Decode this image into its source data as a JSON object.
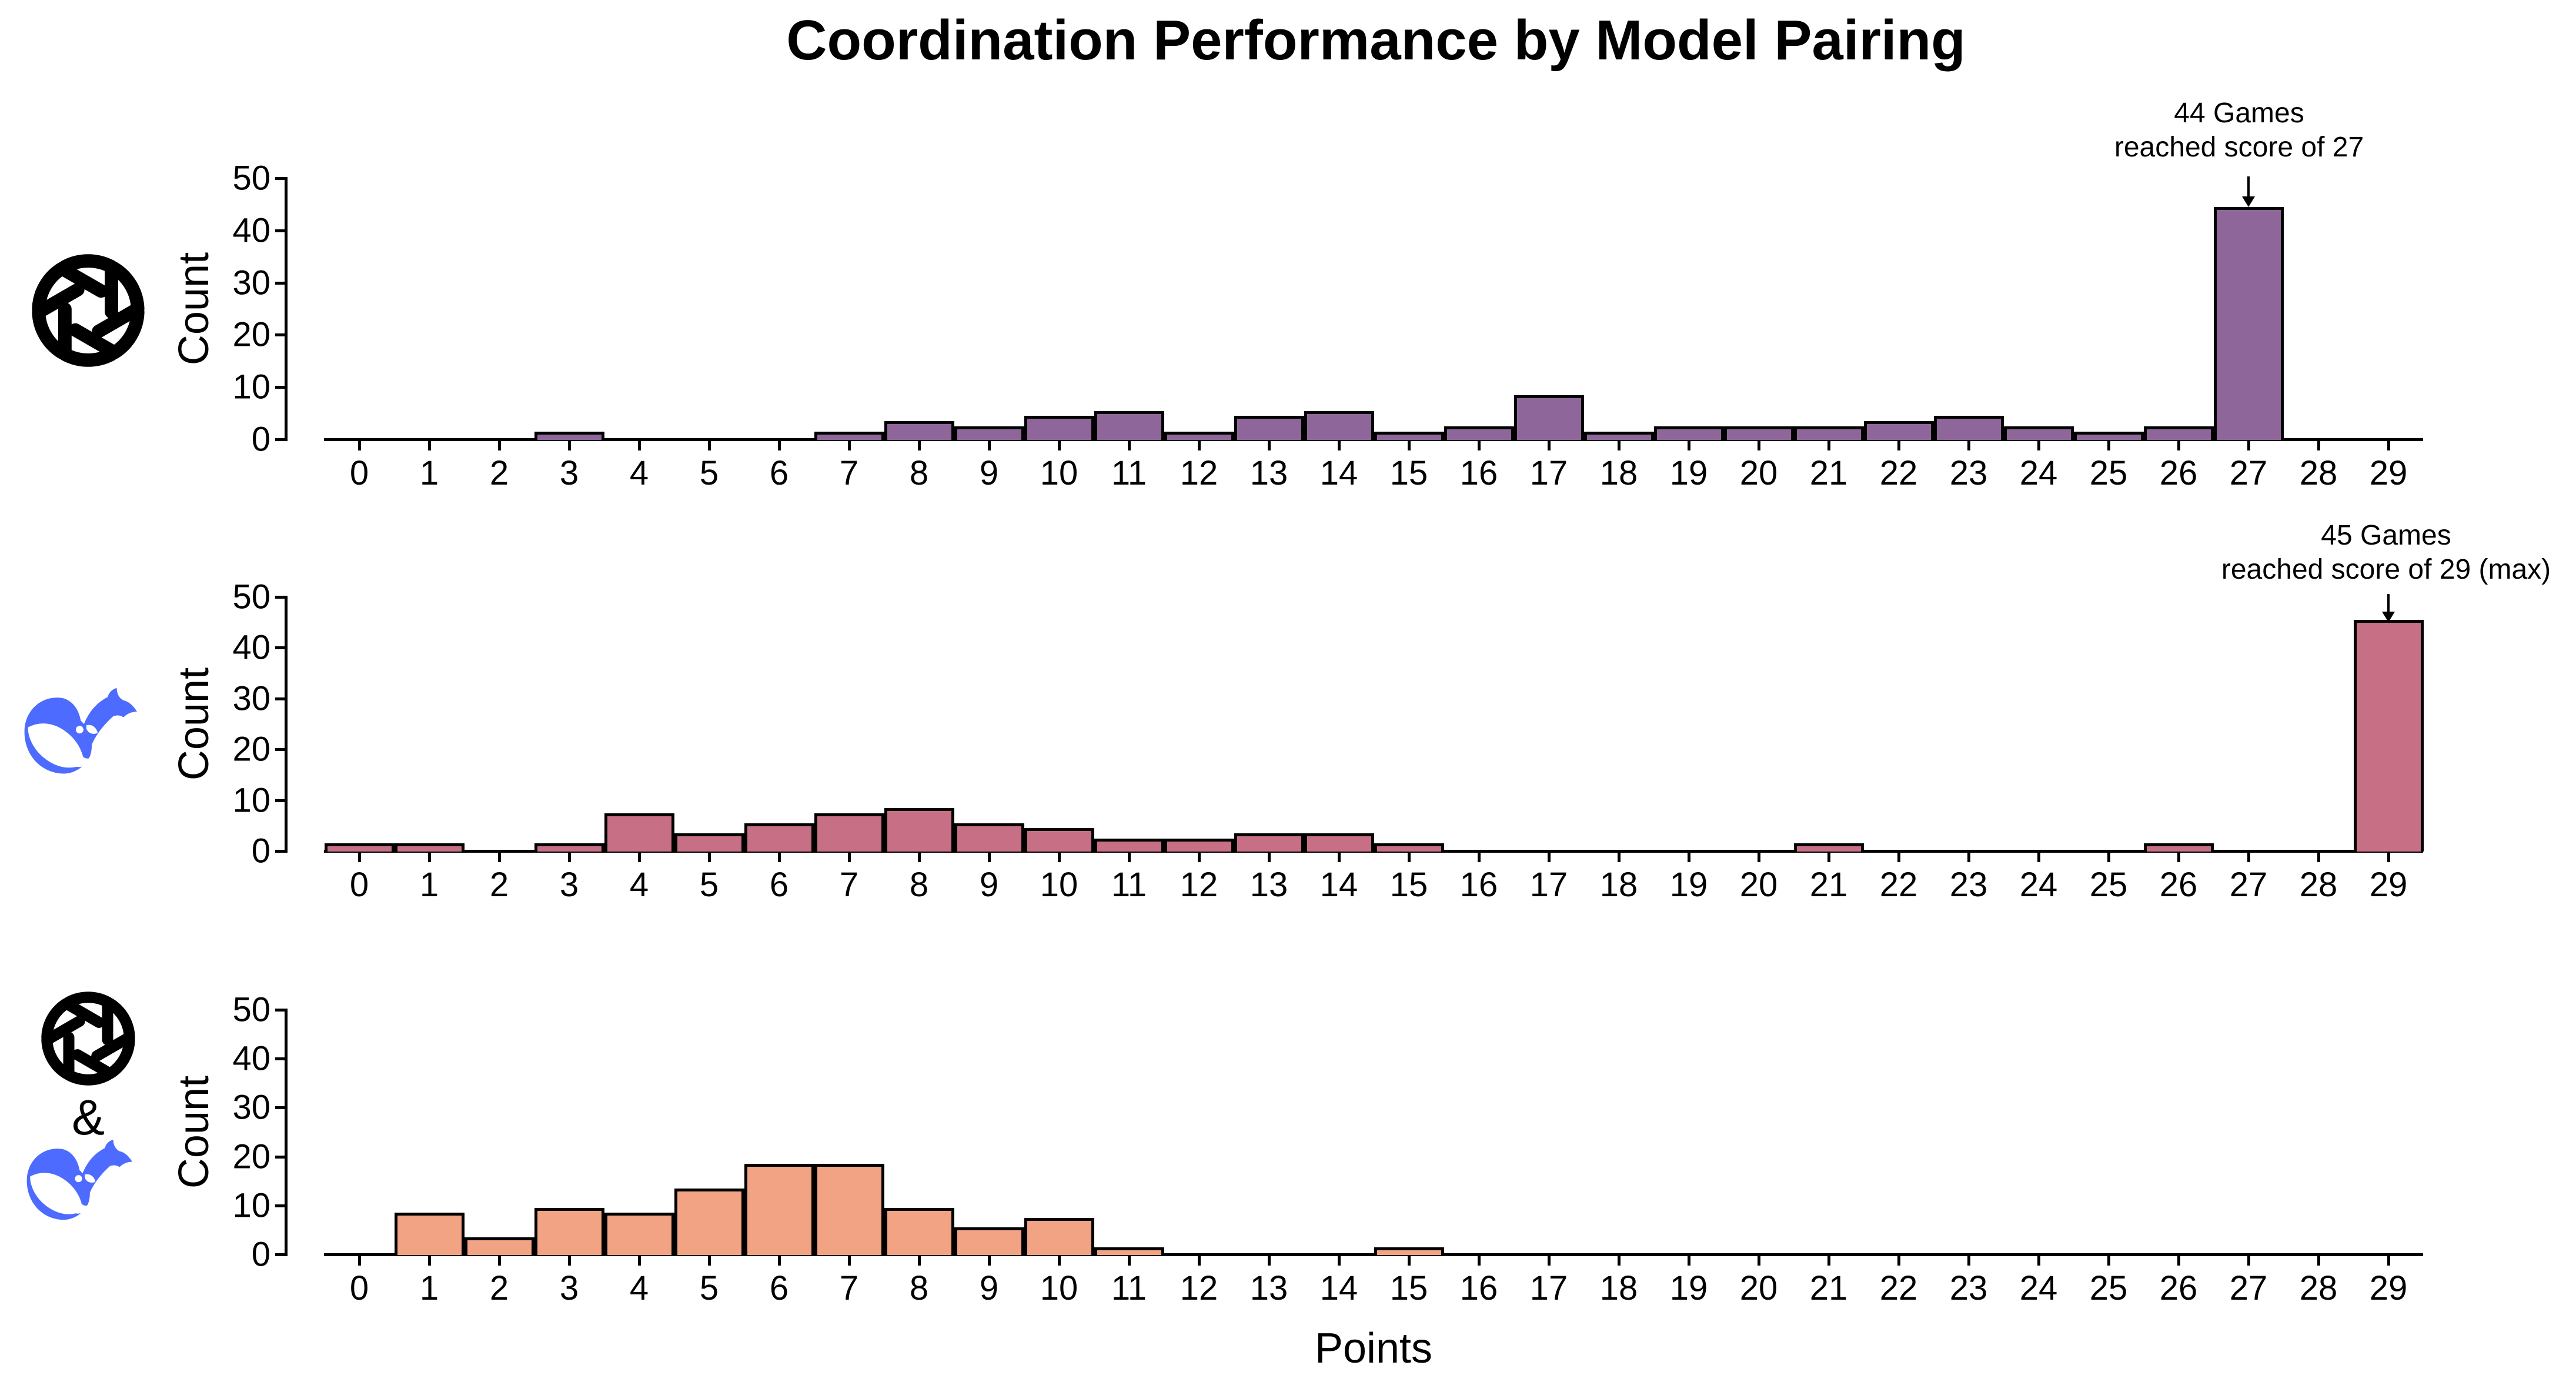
{
  "title": "Coordination Performance by Model Pairing",
  "xlabel": "Points",
  "colors": {
    "background": "#ffffff",
    "text": "#000000",
    "openai_black": "#000000",
    "whale_blue": "#4D6BFE",
    "edge": "#000000",
    "panel_top_bar": "#8F6699",
    "panel_middle_bar": "#C76F85",
    "panel_bottom_bar": "#F2A384"
  },
  "chart_data": [
    {
      "type": "bar",
      "panel": "top",
      "pairing_icons": [
        "openai-logo"
      ],
      "ylabel": "Count",
      "bar_color": "#8F6699",
      "edge_color": "#000000",
      "x": [
        0,
        1,
        2,
        3,
        4,
        5,
        6,
        7,
        8,
        9,
        10,
        11,
        12,
        13,
        14,
        15,
        16,
        17,
        18,
        19,
        20,
        21,
        22,
        23,
        24,
        25,
        26,
        27,
        28,
        29
      ],
      "values": [
        0,
        0,
        0,
        1,
        0,
        0,
        0,
        1,
        3,
        2,
        4,
        5,
        1,
        4,
        5,
        1,
        2,
        8,
        1,
        2,
        2,
        2,
        3,
        4,
        2,
        1,
        2,
        44,
        0,
        0
      ],
      "xticks": [
        0,
        1,
        2,
        3,
        4,
        5,
        6,
        7,
        8,
        9,
        10,
        11,
        12,
        13,
        14,
        15,
        16,
        17,
        18,
        19,
        20,
        21,
        22,
        23,
        24,
        25,
        26,
        27,
        28,
        29
      ],
      "yticks": [
        0,
        10,
        20,
        30,
        40,
        50
      ],
      "ylim": [
        0,
        52
      ],
      "xlim": [
        -1,
        30
      ],
      "grid": false,
      "annotation": {
        "line1": "44 Games",
        "line2": "reached score of 27",
        "arrow_points_to_x": 27,
        "arrow_points_to_value": 44
      }
    },
    {
      "type": "bar",
      "panel": "middle",
      "pairing_icons": [
        "deepseek-whale-logo"
      ],
      "ylabel": "Count",
      "bar_color": "#C76F85",
      "edge_color": "#000000",
      "x": [
        0,
        1,
        2,
        3,
        4,
        5,
        6,
        7,
        8,
        9,
        10,
        11,
        12,
        13,
        14,
        15,
        16,
        17,
        18,
        19,
        20,
        21,
        22,
        23,
        24,
        25,
        26,
        27,
        28,
        29
      ],
      "values": [
        1,
        1,
        0,
        1,
        7,
        3,
        5,
        7,
        8,
        5,
        4,
        2,
        2,
        3,
        3,
        1,
        0,
        0,
        0,
        0,
        0,
        1,
        0,
        0,
        0,
        0,
        1,
        0,
        0,
        45
      ],
      "xticks": [
        0,
        1,
        2,
        3,
        4,
        5,
        6,
        7,
        8,
        9,
        10,
        11,
        12,
        13,
        14,
        15,
        16,
        17,
        18,
        19,
        20,
        21,
        22,
        23,
        24,
        25,
        26,
        27,
        28,
        29
      ],
      "yticks": [
        0,
        10,
        20,
        30,
        40,
        50
      ],
      "ylim": [
        0,
        52
      ],
      "xlim": [
        -1,
        30
      ],
      "grid": false,
      "annotation": {
        "line1": "45 Games",
        "line2": "reached score of 29 (max)",
        "arrow_points_to_x": 29,
        "arrow_points_to_value": 45
      }
    },
    {
      "type": "bar",
      "panel": "bottom",
      "pairing_icons": [
        "openai-logo",
        "deepseek-whale-logo"
      ],
      "pairing_separator": "&",
      "ylabel": "Count",
      "xlabel": "Points",
      "bar_color": "#F2A384",
      "edge_color": "#000000",
      "x": [
        0,
        1,
        2,
        3,
        4,
        5,
        6,
        7,
        8,
        9,
        10,
        11,
        12,
        13,
        14,
        15,
        16,
        17,
        18,
        19,
        20,
        21,
        22,
        23,
        24,
        25,
        26,
        27,
        28,
        29
      ],
      "values": [
        0,
        8,
        3,
        9,
        8,
        13,
        18,
        18,
        9,
        5,
        7,
        1,
        0,
        0,
        0,
        1,
        0,
        0,
        0,
        0,
        0,
        0,
        0,
        0,
        0,
        0,
        0,
        0,
        0,
        0
      ],
      "xticks": [
        0,
        1,
        2,
        3,
        4,
        5,
        6,
        7,
        8,
        9,
        10,
        11,
        12,
        13,
        14,
        15,
        16,
        17,
        18,
        19,
        20,
        21,
        22,
        23,
        24,
        25,
        26,
        27,
        28,
        29
      ],
      "yticks": [
        0,
        10,
        20,
        30,
        40,
        50
      ],
      "ylim": [
        0,
        52
      ],
      "xlim": [
        -1,
        30
      ],
      "grid": false,
      "annotation": null
    }
  ]
}
